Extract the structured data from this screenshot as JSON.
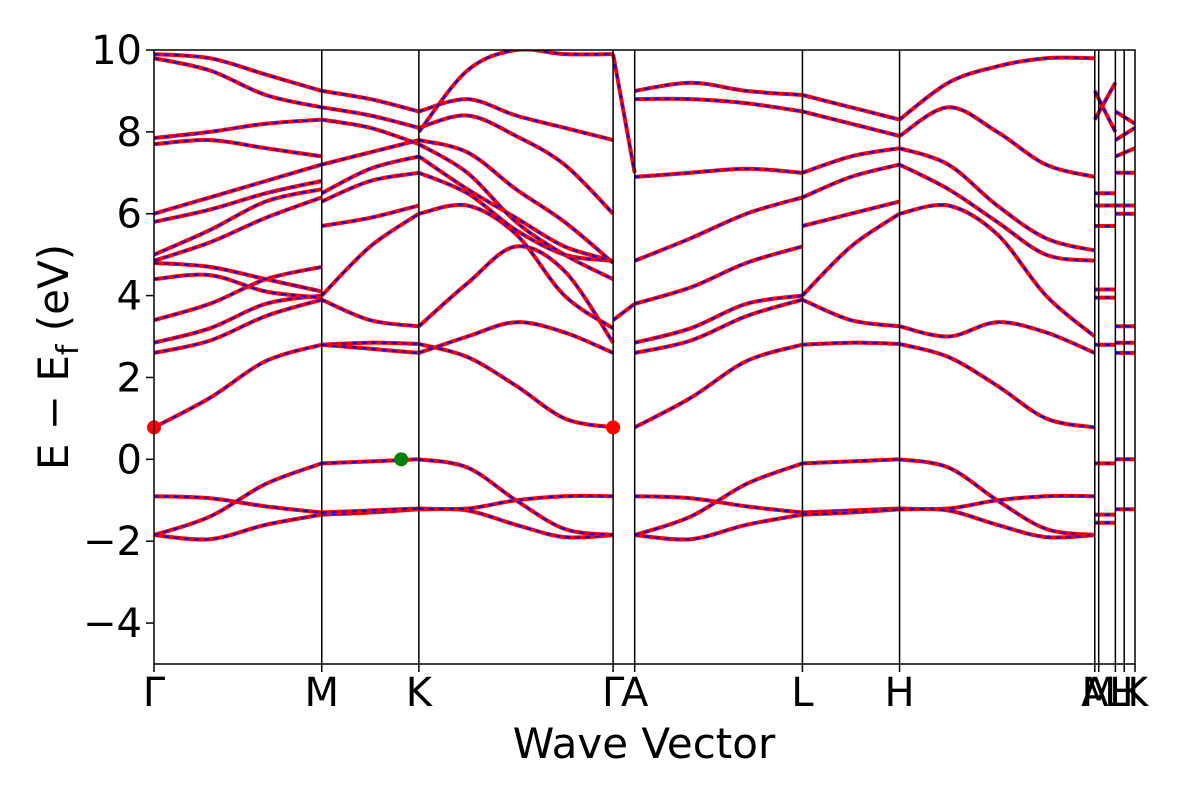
{
  "chart_data": {
    "type": "line",
    "title": "",
    "xlabel": "Wave Vector",
    "ylabel_parts": {
      "main": "E − E",
      "subscript": "f",
      "unit": " (eV)"
    },
    "ylim": [
      -5,
      10
    ],
    "yticks": [
      -4,
      -2,
      0,
      2,
      4,
      6,
      8,
      10
    ],
    "ytick_labels": [
      "−4",
      "−2",
      "0",
      "2",
      "4",
      "6",
      "8",
      "10"
    ],
    "xlim": [
      0,
      1
    ],
    "kpoints": [
      {
        "label": "Γ",
        "x": 0.0
      },
      {
        "label": "M",
        "x": 0.171
      },
      {
        "label": "K",
        "x": 0.27
      },
      {
        "label": "Γ",
        "x": 0.468
      },
      {
        "label": "A",
        "x": 0.49
      },
      {
        "label": "L",
        "x": 0.661
      },
      {
        "label": "H",
        "x": 0.76
      },
      {
        "label": "A",
        "x": 0.959
      },
      {
        "label": "M",
        "x": 0.963
      },
      {
        "label": "L",
        "x": 0.98
      },
      {
        "label": "H",
        "x": 0.989
      },
      {
        "label": "K",
        "x": 1.0
      }
    ],
    "segment_boundaries": [
      0.0,
      0.171,
      0.27,
      0.468,
      0.49,
      0.661,
      0.76,
      0.959,
      0.98,
      1.0
    ],
    "spin_series": [
      {
        "color": "#ff0000",
        "style": "solid"
      },
      {
        "color": "#0000ff",
        "style": "dashed"
      }
    ],
    "bands": [
      {
        "segment": [
          0,
          1
        ],
        "y": [
          -1.85,
          -1.95,
          -1.6,
          -1.35
        ]
      },
      {
        "segment": [
          0,
          1
        ],
        "y": [
          -0.9,
          -0.95,
          -1.15,
          -1.3
        ]
      },
      {
        "segment": [
          0,
          1
        ],
        "y": [
          -1.85,
          -1.4,
          -0.6,
          -0.1
        ]
      },
      {
        "segment": [
          1,
          2
        ],
        "y": [
          -1.35,
          -1.3,
          -1.22
        ]
      },
      {
        "segment": [
          1,
          2
        ],
        "y": [
          -1.3,
          -1.25,
          -1.2
        ]
      },
      {
        "segment": [
          1,
          2
        ],
        "y": [
          -0.1,
          -0.05,
          0.0
        ]
      },
      {
        "segment": [
          2,
          3
        ],
        "y": [
          -1.22,
          -1.25,
          -1.6,
          -1.9,
          -1.85
        ]
      },
      {
        "segment": [
          2,
          3
        ],
        "y": [
          -1.2,
          -1.2,
          -1.0,
          -0.9,
          -0.9
        ]
      },
      {
        "segment": [
          2,
          3
        ],
        "y": [
          0.0,
          -0.2,
          -1.0,
          -1.7,
          -1.85
        ]
      },
      {
        "segment": [
          0,
          1
        ],
        "y": [
          0.78,
          1.5,
          2.4,
          2.8
        ]
      },
      {
        "segment": [
          1,
          2
        ],
        "y": [
          2.8,
          2.85,
          2.82
        ]
      },
      {
        "segment": [
          2,
          3
        ],
        "y": [
          2.82,
          2.5,
          1.8,
          1.0,
          0.78
        ]
      },
      {
        "segment": [
          1,
          2
        ],
        "y": [
          2.8,
          2.7,
          2.6
        ]
      },
      {
        "segment": [
          2,
          3
        ],
        "y": [
          2.6,
          3.0,
          3.35,
          3.1,
          2.6
        ]
      },
      {
        "segment": [
          0,
          1
        ],
        "y": [
          2.6,
          2.9,
          3.5,
          3.9
        ]
      },
      {
        "segment": [
          0,
          1
        ],
        "y": [
          2.85,
          3.2,
          3.8,
          4.0
        ]
      },
      {
        "segment": [
          1,
          2
        ],
        "y": [
          3.9,
          3.4,
          3.25
        ]
      },
      {
        "segment": [
          1,
          2
        ],
        "y": [
          4.0,
          5.2,
          6.0
        ]
      },
      {
        "segment": [
          2,
          3
        ],
        "y": [
          3.25,
          4.3,
          5.2,
          4.6,
          2.85
        ]
      },
      {
        "segment": [
          2,
          3
        ],
        "y": [
          6.0,
          6.2,
          5.5,
          4.0,
          3.2
        ]
      },
      {
        "segment": [
          0,
          1
        ],
        "y": [
          3.4,
          3.8,
          4.4,
          4.7
        ]
      },
      {
        "segment": [
          0,
          1
        ],
        "y": [
          4.4,
          4.5,
          4.1,
          3.95
        ]
      },
      {
        "segment": [
          0,
          1
        ],
        "y": [
          4.8,
          4.7,
          4.4,
          4.1
        ]
      },
      {
        "segment": [
          0,
          1
        ],
        "y": [
          4.85,
          5.3,
          5.9,
          6.4
        ]
      },
      {
        "segment": [
          0,
          1
        ],
        "y": [
          5.0,
          5.6,
          6.3,
          6.6
        ]
      },
      {
        "segment": [
          0,
          1
        ],
        "y": [
          5.8,
          6.1,
          6.5,
          6.8
        ]
      },
      {
        "segment": [
          0,
          1
        ],
        "y": [
          6.0,
          6.4,
          6.8,
          7.2
        ]
      },
      {
        "segment": [
          0,
          1
        ],
        "y": [
          7.7,
          7.8,
          7.6,
          7.4
        ]
      },
      {
        "segment": [
          0,
          1
        ],
        "y": [
          7.85,
          8.0,
          8.2,
          8.3
        ]
      },
      {
        "segment": [
          0,
          1
        ],
        "y": [
          9.8,
          9.5,
          8.9,
          8.6
        ]
      },
      {
        "segment": [
          0,
          1
        ],
        "y": [
          9.9,
          9.8,
          9.4,
          9.0
        ]
      },
      {
        "segment": [
          1,
          2
        ],
        "y": [
          5.7,
          5.9,
          6.2
        ]
      },
      {
        "segment": [
          1,
          2
        ],
        "y": [
          6.3,
          6.8,
          7.0
        ]
      },
      {
        "segment": [
          1,
          2
        ],
        "y": [
          6.5,
          7.1,
          7.4
        ]
      },
      {
        "segment": [
          1,
          2
        ],
        "y": [
          7.2,
          7.5,
          7.8
        ]
      },
      {
        "segment": [
          1,
          2
        ],
        "y": [
          8.3,
          8.1,
          7.7
        ]
      },
      {
        "segment": [
          1,
          2
        ],
        "y": [
          8.6,
          8.4,
          8.1
        ]
      },
      {
        "segment": [
          1,
          2
        ],
        "y": [
          9.0,
          8.8,
          8.5
        ]
      },
      {
        "segment": [
          2,
          3
        ],
        "y": [
          7.0,
          6.5,
          5.6,
          5.0,
          4.85
        ]
      },
      {
        "segment": [
          2,
          3
        ],
        "y": [
          7.4,
          6.6,
          5.9,
          5.2,
          4.85
        ]
      },
      {
        "segment": [
          2,
          3
        ],
        "y": [
          7.8,
          7.5,
          6.6,
          5.8,
          4.8
        ]
      },
      {
        "segment": [
          2,
          3
        ],
        "y": [
          7.7,
          7.0,
          5.8,
          5.0,
          4.4
        ]
      },
      {
        "segment": [
          2,
          3
        ],
        "y": [
          8.1,
          8.4,
          7.9,
          7.2,
          6.0
        ]
      },
      {
        "segment": [
          2,
          3
        ],
        "y": [
          8.5,
          8.8,
          8.4,
          8.1,
          7.8
        ]
      },
      {
        "segment": [
          2,
          3
        ],
        "y": [
          8.0,
          9.5,
          10.0,
          9.9,
          9.9
        ]
      },
      {
        "segment": [
          3,
          4
        ],
        "y": [
          9.9,
          7.0
        ]
      },
      {
        "segment": [
          3,
          4
        ],
        "y": [
          3.4,
          3.8
        ]
      },
      {
        "segment": [
          4,
          5
        ],
        "y": [
          0.78,
          1.5,
          2.4,
          2.8
        ]
      },
      {
        "segment": [
          4,
          5
        ],
        "y": [
          -0.9,
          -0.95,
          -1.15,
          -1.3
        ]
      },
      {
        "segment": [
          4,
          5
        ],
        "y": [
          -1.85,
          -1.95,
          -1.6,
          -1.35
        ]
      },
      {
        "segment": [
          4,
          5
        ],
        "y": [
          -1.85,
          -1.4,
          -0.6,
          -0.1
        ]
      },
      {
        "segment": [
          4,
          5
        ],
        "y": [
          2.6,
          2.9,
          3.5,
          3.9
        ]
      },
      {
        "segment": [
          4,
          5
        ],
        "y": [
          2.85,
          3.2,
          3.8,
          4.0
        ]
      },
      {
        "segment": [
          4,
          5
        ],
        "y": [
          3.8,
          4.2,
          4.8,
          5.2
        ]
      },
      {
        "segment": [
          4,
          5
        ],
        "y": [
          4.85,
          5.4,
          6.0,
          6.4
        ]
      },
      {
        "segment": [
          4,
          5
        ],
        "y": [
          6.9,
          7.0,
          7.1,
          7.0
        ]
      },
      {
        "segment": [
          4,
          5
        ],
        "y": [
          8.8,
          8.8,
          8.7,
          8.5
        ]
      },
      {
        "segment": [
          4,
          5
        ],
        "y": [
          9.0,
          9.2,
          9.0,
          8.9
        ]
      },
      {
        "segment": [
          5,
          6
        ],
        "y": [
          2.8,
          2.85,
          2.82
        ]
      },
      {
        "segment": [
          5,
          6
        ],
        "y": [
          -0.1,
          -0.05,
          0.0
        ]
      },
      {
        "segment": [
          5,
          6
        ],
        "y": [
          -1.3,
          -1.25,
          -1.2
        ]
      },
      {
        "segment": [
          5,
          6
        ],
        "y": [
          -1.35,
          -1.3,
          -1.22
        ]
      },
      {
        "segment": [
          5,
          6
        ],
        "y": [
          3.9,
          3.4,
          3.25
        ]
      },
      {
        "segment": [
          5,
          6
        ],
        "y": [
          4.0,
          5.2,
          6.0
        ]
      },
      {
        "segment": [
          5,
          6
        ],
        "y": [
          5.7,
          6.0,
          6.3
        ]
      },
      {
        "segment": [
          5,
          6
        ],
        "y": [
          6.4,
          6.9,
          7.2
        ]
      },
      {
        "segment": [
          5,
          6
        ],
        "y": [
          7.0,
          7.4,
          7.6
        ]
      },
      {
        "segment": [
          5,
          6
        ],
        "y": [
          8.5,
          8.2,
          7.9
        ]
      },
      {
        "segment": [
          5,
          6
        ],
        "y": [
          8.9,
          8.6,
          8.3
        ]
      },
      {
        "segment": [
          6,
          7
        ],
        "y": [
          2.82,
          2.5,
          1.8,
          1.0,
          0.78
        ]
      },
      {
        "segment": [
          6,
          7
        ],
        "y": [
          0.0,
          -0.2,
          -1.0,
          -1.7,
          -1.85
        ]
      },
      {
        "segment": [
          6,
          7
        ],
        "y": [
          -1.2,
          -1.2,
          -1.0,
          -0.9,
          -0.9
        ]
      },
      {
        "segment": [
          6,
          7
        ],
        "y": [
          -1.22,
          -1.25,
          -1.6,
          -1.9,
          -1.85
        ]
      },
      {
        "segment": [
          6,
          7
        ],
        "y": [
          3.25,
          3.0,
          3.35,
          3.1,
          2.6
        ]
      },
      {
        "segment": [
          6,
          7
        ],
        "y": [
          6.0,
          6.2,
          5.5,
          4.0,
          3.0
        ]
      },
      {
        "segment": [
          6,
          7
        ],
        "y": [
          7.2,
          6.6,
          5.8,
          5.0,
          4.85
        ]
      },
      {
        "segment": [
          6,
          7
        ],
        "y": [
          7.6,
          7.2,
          6.2,
          5.4,
          5.1
        ]
      },
      {
        "segment": [
          6,
          7
        ],
        "y": [
          7.9,
          8.6,
          8.0,
          7.2,
          6.9
        ]
      },
      {
        "segment": [
          6,
          7
        ],
        "y": [
          8.3,
          9.2,
          9.6,
          9.8,
          9.8
        ]
      },
      {
        "segment": [
          7,
          8
        ],
        "y": [
          -1.55,
          -1.55
        ]
      },
      {
        "segment": [
          7,
          8
        ],
        "y": [
          -1.35,
          -1.35
        ]
      },
      {
        "segment": [
          7,
          8
        ],
        "y": [
          -0.1,
          -0.1
        ]
      },
      {
        "segment": [
          7,
          8
        ],
        "y": [
          2.8,
          2.8
        ]
      },
      {
        "segment": [
          7,
          8
        ],
        "y": [
          3.95,
          3.95
        ]
      },
      {
        "segment": [
          7,
          8
        ],
        "y": [
          4.15,
          4.15
        ]
      },
      {
        "segment": [
          7,
          8
        ],
        "y": [
          5.7,
          5.7
        ]
      },
      {
        "segment": [
          7,
          8
        ],
        "y": [
          6.2,
          6.2
        ]
      },
      {
        "segment": [
          7,
          8
        ],
        "y": [
          6.5,
          6.5
        ]
      },
      {
        "segment": [
          7,
          8
        ],
        "y": [
          8.3,
          9.2
        ]
      },
      {
        "segment": [
          7,
          8
        ],
        "y": [
          9.0,
          8.0
        ]
      },
      {
        "segment": [
          8,
          9
        ],
        "y": [
          -1.22,
          -1.22
        ]
      },
      {
        "segment": [
          8,
          9
        ],
        "y": [
          0.0,
          0.0
        ]
      },
      {
        "segment": [
          8,
          9
        ],
        "y": [
          2.6,
          2.6
        ]
      },
      {
        "segment": [
          8,
          9
        ],
        "y": [
          2.85,
          2.85
        ]
      },
      {
        "segment": [
          8,
          9
        ],
        "y": [
          3.25,
          3.25
        ]
      },
      {
        "segment": [
          8,
          9
        ],
        "y": [
          6.0,
          6.0
        ]
      },
      {
        "segment": [
          8,
          9
        ],
        "y": [
          6.2,
          6.2
        ]
      },
      {
        "segment": [
          8,
          9
        ],
        "y": [
          7.0,
          7.0
        ]
      },
      {
        "segment": [
          8,
          9
        ],
        "y": [
          7.4,
          7.6
        ]
      },
      {
        "segment": [
          8,
          9
        ],
        "y": [
          7.8,
          8.1
        ]
      },
      {
        "segment": [
          8,
          9
        ],
        "y": [
          8.5,
          8.2
        ]
      }
    ],
    "markers": [
      {
        "name": "cbm-gamma-marker",
        "x": 0.0,
        "y": 0.78,
        "color": "#ff0000"
      },
      {
        "name": "cbm-gamma2-marker",
        "x": 0.468,
        "y": 0.78,
        "color": "#ff0000"
      },
      {
        "name": "vbm-marker",
        "x": 0.252,
        "y": 0.0,
        "color": "#008000"
      }
    ],
    "grid": false,
    "legend": "none"
  }
}
